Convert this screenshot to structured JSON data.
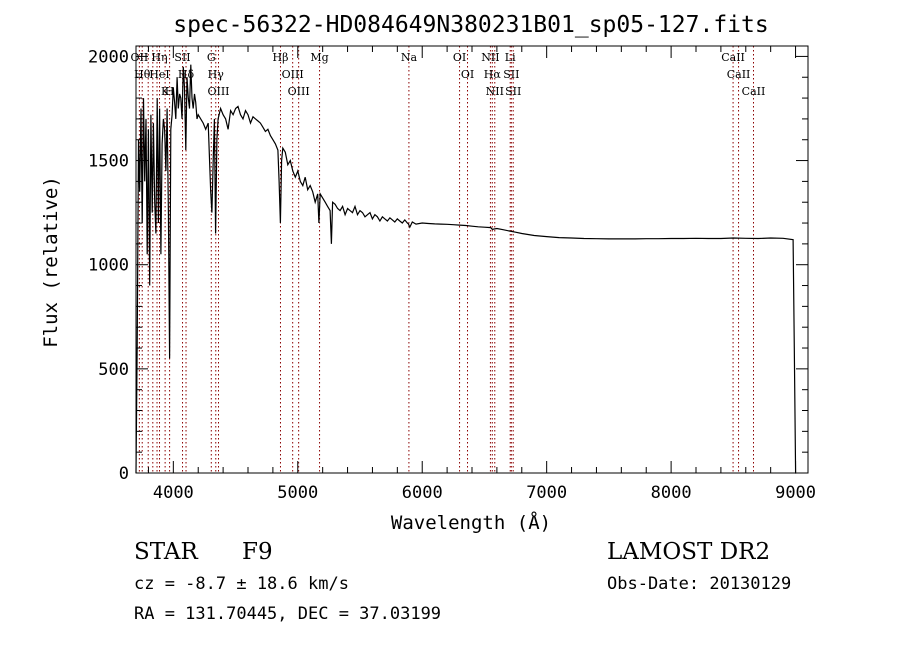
{
  "chart_data": {
    "type": "line",
    "title": "spec-56322-HD084649N380231B01_sp05-127.fits",
    "xlabel": "Wavelength (Å)",
    "ylabel": "Flux (relative)",
    "xlim": [
      3700,
      9100
    ],
    "ylim": [
      0,
      2050
    ],
    "xticks": [
      4000,
      5000,
      6000,
      7000,
      8000,
      9000
    ],
    "yticks": [
      0,
      500,
      1000,
      1500,
      2000
    ],
    "grid": false,
    "line_color": "#000000",
    "marker_color": "#8b0000",
    "series": [
      {
        "x": [
          3700,
          3710,
          3720,
          3730,
          3740,
          3750,
          3760,
          3770,
          3780,
          3790,
          3800,
          3810,
          3820,
          3830,
          3840,
          3850,
          3860,
          3870,
          3880,
          3890,
          3900,
          3910,
          3920,
          3930,
          3940,
          3950,
          3960,
          3970,
          3980,
          3990,
          4000,
          4010,
          4020,
          4030,
          4040,
          4050,
          4060,
          4070,
          4080,
          4090,
          4100,
          4110,
          4120,
          4130,
          4140,
          4150,
          4160,
          4170,
          4180,
          4190,
          4200,
          4220,
          4240,
          4260,
          4280,
          4300,
          4310,
          4320,
          4330,
          4340,
          4350,
          4360,
          4380,
          4400,
          4420,
          4440,
          4460,
          4480,
          4500,
          4520,
          4540,
          4560,
          4580,
          4600,
          4620,
          4640,
          4660,
          4680,
          4700,
          4720,
          4740,
          4760,
          4780,
          4800,
          4820,
          4840,
          4850,
          4860,
          4870,
          4880,
          4900,
          4920,
          4940,
          4960,
          4980,
          5000,
          5020,
          5040,
          5060,
          5080,
          5100,
          5120,
          5140,
          5160,
          5170,
          5180,
          5200,
          5220,
          5240,
          5260,
          5270,
          5280,
          5300,
          5320,
          5340,
          5360,
          5380,
          5400,
          5420,
          5440,
          5460,
          5480,
          5500,
          5520,
          5540,
          5560,
          5580,
          5600,
          5620,
          5640,
          5660,
          5680,
          5700,
          5720,
          5740,
          5760,
          5780,
          5800,
          5820,
          5840,
          5860,
          5880,
          5890,
          5900,
          5920,
          5950,
          6000,
          6050,
          6100,
          6150,
          6200,
          6250,
          6300,
          6350,
          6400,
          6450,
          6500,
          6550,
          6563,
          6600,
          6650,
          6700,
          6750,
          6800,
          6850,
          6900,
          7000,
          7100,
          7200,
          7300,
          7400,
          7500,
          7600,
          7700,
          7800,
          7900,
          8000,
          8100,
          8200,
          8300,
          8400,
          8500,
          8600,
          8700,
          8800,
          8900,
          8980,
          8990,
          9000,
          9005
        ],
        "y": [
          0,
          620,
          1600,
          1350,
          1750,
          1200,
          1800,
          1400,
          1700,
          1050,
          1650,
          900,
          1720,
          1250,
          1680,
          1300,
          1150,
          1800,
          1200,
          1750,
          1050,
          1580,
          1700,
          1650,
          1450,
          1750,
          1250,
          550,
          1650,
          1720,
          1850,
          1780,
          1700,
          1900,
          1750,
          1820,
          1800,
          1700,
          1950,
          1850,
          1550,
          1900,
          1800,
          1750,
          1960,
          1800,
          1750,
          1820,
          1780,
          1700,
          1720,
          1700,
          1680,
          1650,
          1680,
          1350,
          1250,
          1500,
          1700,
          1150,
          1600,
          1700,
          1750,
          1720,
          1700,
          1650,
          1740,
          1720,
          1750,
          1760,
          1720,
          1700,
          1740,
          1720,
          1680,
          1710,
          1700,
          1690,
          1680,
          1660,
          1640,
          1650,
          1620,
          1600,
          1580,
          1550,
          1400,
          1200,
          1500,
          1560,
          1540,
          1480,
          1500,
          1450,
          1420,
          1450,
          1400,
          1380,
          1420,
          1360,
          1380,
          1350,
          1300,
          1340,
          1200,
          1340,
          1320,
          1300,
          1280,
          1260,
          1100,
          1300,
          1290,
          1270,
          1260,
          1280,
          1240,
          1270,
          1260,
          1250,
          1280,
          1240,
          1260,
          1250,
          1230,
          1240,
          1250,
          1220,
          1240,
          1230,
          1210,
          1230,
          1220,
          1210,
          1225,
          1215,
          1205,
          1220,
          1210,
          1200,
          1215,
          1200,
          1195,
          1180,
          1205,
          1195,
          1200,
          1198,
          1196,
          1195,
          1194,
          1192,
          1190,
          1188,
          1185,
          1182,
          1180,
          1178,
          1170,
          1174,
          1168,
          1162,
          1156,
          1150,
          1145,
          1140,
          1135,
          1130,
          1128,
          1126,
          1125,
          1124,
          1124,
          1124,
          1125,
          1125,
          1126,
          1126,
          1127,
          1126,
          1126,
          1128,
          1127,
          1126,
          1128,
          1127,
          1120,
          600,
          0,
          0
        ]
      }
    ],
    "lines": [
      {
        "wavelength": 3727,
        "labels": [
          "OII"
        ]
      },
      {
        "wavelength": 3750,
        "labels": [
          "Hθ"
        ]
      },
      {
        "wavelength": 3798,
        "labels": []
      },
      {
        "wavelength": 3835,
        "labels": []
      },
      {
        "wavelength": 3869,
        "labels": []
      },
      {
        "wavelength": 3889,
        "labels": [
          "Hη",
          "HeI"
        ]
      },
      {
        "wavelength": 3934,
        "labels": [
          "K"
        ]
      },
      {
        "wavelength": 3970,
        "labels": [
          "H"
        ]
      },
      {
        "wavelength": 4074,
        "labels": [
          "SII"
        ]
      },
      {
        "wavelength": 4102,
        "labels": [
          "Hδ"
        ]
      },
      {
        "wavelength": 4305,
        "labels": [
          "G"
        ]
      },
      {
        "wavelength": 4341,
        "labels": [
          "Hγ"
        ]
      },
      {
        "wavelength": 4363,
        "labels": [
          "OIII"
        ]
      },
      {
        "wavelength": 4861,
        "labels": [
          "Hβ"
        ]
      },
      {
        "wavelength": 4959,
        "labels": [
          "OIII"
        ]
      },
      {
        "wavelength": 5007,
        "labels": [
          "OIII"
        ]
      },
      {
        "wavelength": 5175,
        "labels": [
          "Mg"
        ]
      },
      {
        "wavelength": 5893,
        "labels": [
          "Na"
        ]
      },
      {
        "wavelength": 6300,
        "labels": [
          "OI"
        ]
      },
      {
        "wavelength": 6364,
        "labels": [
          "OI"
        ]
      },
      {
        "wavelength": 6548,
        "labels": [
          "NII"
        ]
      },
      {
        "wavelength": 6563,
        "labels": [
          "Hα"
        ]
      },
      {
        "wavelength": 6583,
        "labels": [
          "NII"
        ]
      },
      {
        "wavelength": 6707,
        "labels": [
          "Li"
        ]
      },
      {
        "wavelength": 6716,
        "labels": [
          "SII"
        ]
      },
      {
        "wavelength": 6731,
        "labels": [
          "SII"
        ]
      },
      {
        "wavelength": 8498,
        "labels": [
          "CaII"
        ]
      },
      {
        "wavelength": 8542,
        "labels": [
          "CaII"
        ]
      },
      {
        "wavelength": 8662,
        "labels": [
          "CaII"
        ]
      }
    ]
  },
  "info": {
    "object_class": "STAR",
    "subclass": "F9",
    "survey": "LAMOST DR2",
    "cz": "cz = -8.7 ± 18.6 km/s",
    "obs_date": "Obs-Date: 20130129",
    "coords": "RA = 131.70445, DEC =  37.03199"
  }
}
